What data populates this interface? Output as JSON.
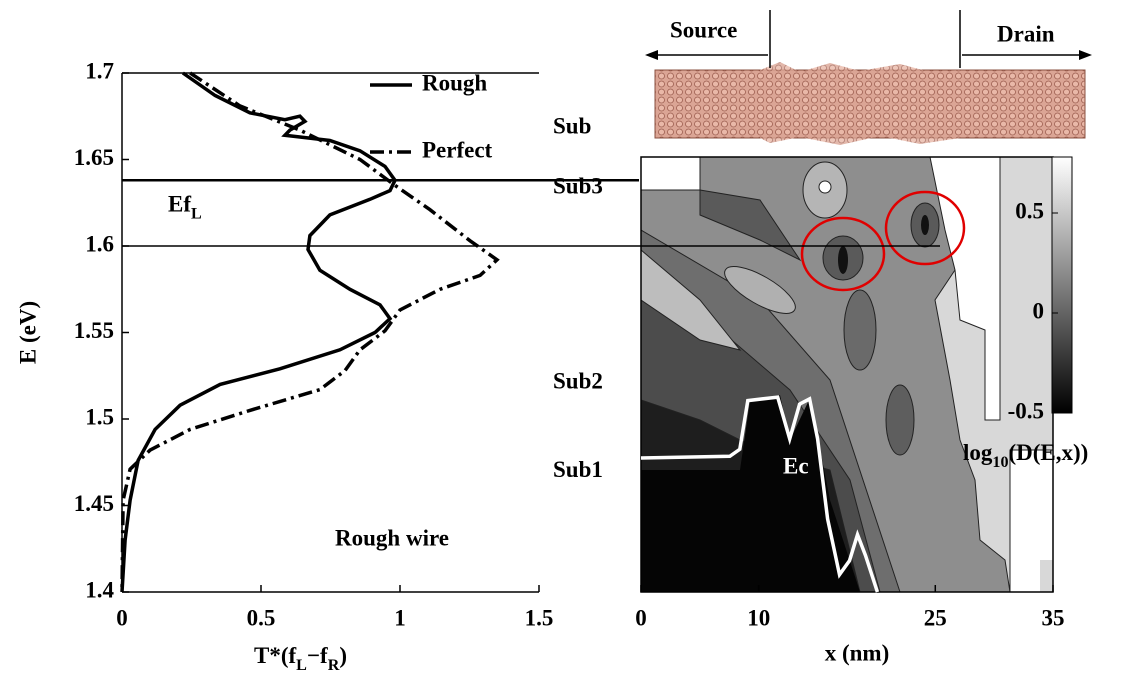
{
  "chart_data": [
    {
      "type": "line",
      "orientation": "horizontal",
      "xlabel": [
        "T*(f",
        "L",
        "−f",
        "R",
        ")"
      ],
      "ylabel": "E (eV)",
      "xlim": [
        0,
        1.5
      ],
      "xticks": [
        0,
        0.5,
        1,
        1.5
      ],
      "ylim": [
        1.4,
        1.7
      ],
      "yticks": [
        1.4,
        1.45,
        1.5,
        1.55,
        1.6,
        1.65,
        1.7
      ],
      "legend": "upper right",
      "hlines": [
        {
          "value": 1.638,
          "label": [
            "Ef",
            "L"
          ]
        },
        {
          "value": 1.6
        }
      ],
      "annotation": "Rough wire",
      "series": [
        {
          "name": "Rough",
          "color": "#000000",
          "style": "solid",
          "values": [
            0.219,
            0.335,
            0.46,
            0.586,
            0.64,
            0.658,
            0.604,
            0.586,
            0.64,
            0.748,
            0.856,
            0.946,
            0.982,
            0.964,
            0.892,
            0.748,
            0.676,
            0.669,
            0.712,
            0.82,
            0.928,
            0.964,
            0.91,
            0.784,
            0.568,
            0.353,
            0.209,
            0.119,
            0.058,
            0.029,
            0.011,
            0
          ],
          "y": [
            1.7,
            1.687,
            1.677,
            1.673,
            1.675,
            1.672,
            1.667,
            1.664,
            1.663,
            1.661,
            1.655,
            1.646,
            1.638,
            1.632,
            1.627,
            1.618,
            1.606,
            1.598,
            1.586,
            1.575,
            1.566,
            1.558,
            1.55,
            1.54,
            1.529,
            1.52,
            1.508,
            1.494,
            1.476,
            1.453,
            1.43,
            1.4
          ]
        },
        {
          "name": "Perfect",
          "color": "#000000",
          "style": "dashdot",
          "values": [
            0.245,
            0.424,
            0.64,
            0.856,
            0.982,
            1.108,
            1.252,
            1.349,
            1.288,
            1.144,
            1.0,
            0.946,
            0.856,
            0.802,
            0.712,
            0.46,
            0.245,
            0.101,
            0.029,
            0.004,
            0
          ],
          "y": [
            1.7,
            1.681,
            1.667,
            1.65,
            1.635,
            1.621,
            1.603,
            1.592,
            1.583,
            1.575,
            1.563,
            1.551,
            1.54,
            1.528,
            1.517,
            1.505,
            1.494,
            1.482,
            1.471,
            1.453,
            1.4
          ]
        }
      ]
    },
    {
      "type": "contour",
      "xlabel": "x (nm)",
      "xlim": [
        0,
        35
      ],
      "xticks": [
        0,
        10,
        25,
        35
      ],
      "ylim": [
        1.4,
        1.65
      ],
      "levels": [
        {
          "label": "Sub3",
          "value": 1.632
        },
        {
          "label": "Sub2",
          "value": 1.52
        },
        {
          "label": "Sub1",
          "value": 1.469
        }
      ],
      "structure_labels": [
        "Source",
        "Drain",
        "Sub"
      ],
      "colorbar": {
        "lim": [
          -0.5,
          0.78
        ],
        "ticks": [
          -0.5,
          0,
          0.5
        ],
        "label": [
          "log",
          "10",
          "(D(E,x))"
        ]
      },
      "series": [
        {
          "name": "Ec",
          "color": "#ffffff",
          "x": [
            0,
            7.54,
            8.39,
            9.07,
            11.61,
            12.63,
            13.47,
            14.32,
            15.0,
            15.85,
            16.86,
            17.71,
            18.39,
            19.07,
            20.08
          ],
          "values": [
            1.477,
            1.478,
            1.482,
            1.51,
            1.512,
            1.488,
            1.508,
            1.511,
            1.488,
            1.442,
            1.41,
            1.418,
            1.433,
            1.421,
            1.4
          ]
        }
      ]
    }
  ]
}
